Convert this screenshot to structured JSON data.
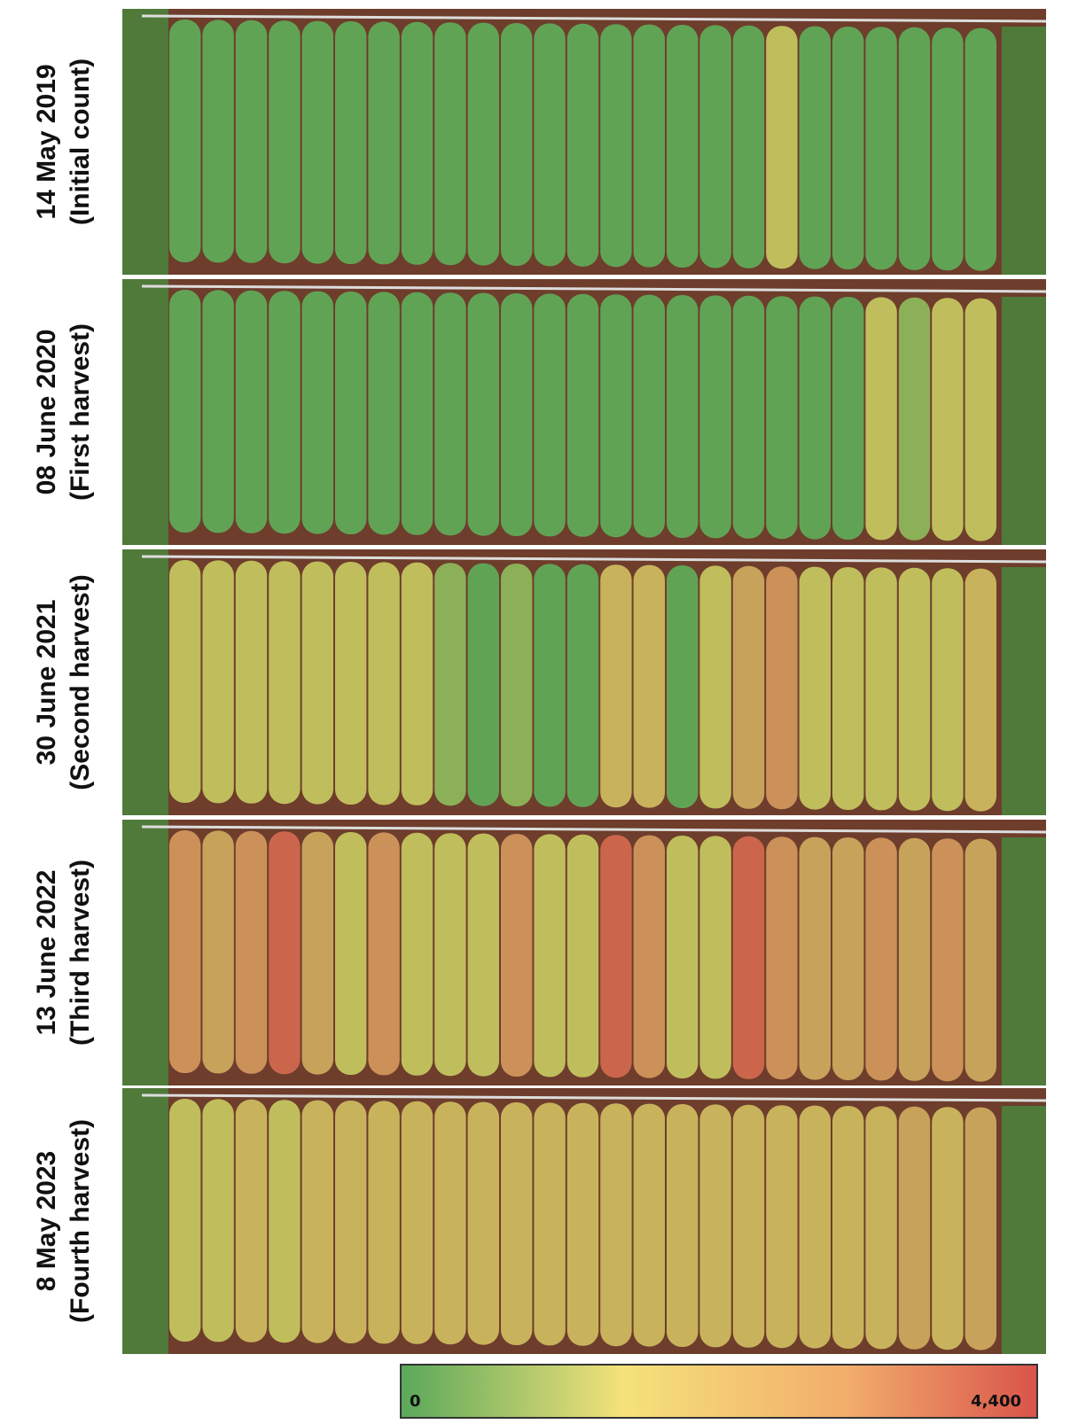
{
  "panels": [
    {
      "date": "14 May 2019",
      "note": "(Initial count)"
    },
    {
      "date": "08 June 2020",
      "note": "(First harvest)"
    },
    {
      "date": "30 June 2021",
      "note": "(Second harvest)"
    },
    {
      "date": "13 June 2022",
      "note": "(Third harvest)"
    },
    {
      "date": "8 May 2023",
      "note": "(Fourth harvest)"
    }
  ],
  "colorbar": {
    "min_label": "0",
    "max_label": "4,400"
  }
}
